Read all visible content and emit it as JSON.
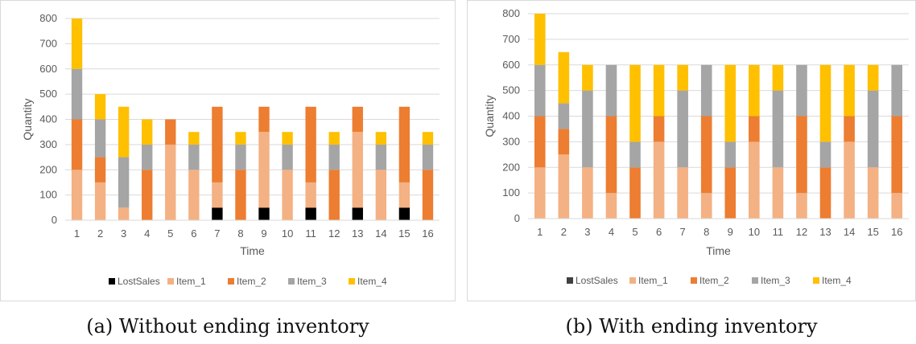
{
  "chart_data": [
    {
      "type": "bar",
      "stacked": true,
      "caption": "(a) Without ending inventory",
      "xlabel": "Time",
      "ylabel": "Quantity",
      "ylim": [
        0,
        800
      ],
      "yticks": [
        0,
        100,
        200,
        300,
        400,
        500,
        600,
        700,
        800
      ],
      "grid": true,
      "legend_position": "bottom",
      "categories": [
        "1",
        "2",
        "3",
        "4",
        "5",
        "6",
        "7",
        "8",
        "9",
        "10",
        "11",
        "12",
        "13",
        "14",
        "15",
        "16"
      ],
      "series": [
        {
          "name": "LostSales",
          "color": "#000000",
          "values": [
            0,
            0,
            0,
            0,
            0,
            0,
            50,
            0,
            50,
            0,
            50,
            0,
            50,
            0,
            50,
            0
          ]
        },
        {
          "name": "Item_1",
          "color": "#f4b183",
          "values": [
            200,
            150,
            50,
            0,
            300,
            200,
            100,
            0,
            300,
            200,
            100,
            0,
            300,
            200,
            100,
            0
          ]
        },
        {
          "name": "Item_2",
          "color": "#ed7d31",
          "values": [
            200,
            100,
            0,
            200,
            100,
            0,
            300,
            200,
            100,
            0,
            300,
            200,
            100,
            0,
            300,
            200
          ]
        },
        {
          "name": "Item_3",
          "color": "#a5a5a5",
          "values": [
            200,
            150,
            200,
            100,
            0,
            100,
            0,
            100,
            0,
            100,
            0,
            100,
            0,
            100,
            0,
            100
          ]
        },
        {
          "name": "Item_4",
          "color": "#ffc000",
          "values": [
            200,
            100,
            200,
            100,
            0,
            50,
            0,
            50,
            0,
            50,
            0,
            50,
            0,
            50,
            0,
            50
          ]
        }
      ]
    },
    {
      "type": "bar",
      "stacked": true,
      "caption": "(b) With ending inventory",
      "xlabel": "Time",
      "ylabel": "Quantity",
      "ylim": [
        0,
        800
      ],
      "yticks": [
        0,
        100,
        200,
        300,
        400,
        500,
        600,
        700,
        800
      ],
      "grid": true,
      "legend_position": "bottom",
      "categories": [
        "1",
        "2",
        "3",
        "4",
        "5",
        "6",
        "7",
        "8",
        "9",
        "10",
        "11",
        "12",
        "13",
        "14",
        "15",
        "16"
      ],
      "series": [
        {
          "name": "LostSales",
          "color": "#404040",
          "values": [
            0,
            0,
            0,
            0,
            0,
            0,
            0,
            0,
            0,
            0,
            0,
            0,
            0,
            0,
            0,
            0
          ]
        },
        {
          "name": "Item_1",
          "color": "#f4b183",
          "values": [
            200,
            250,
            200,
            100,
            0,
            300,
            200,
            100,
            0,
            300,
            200,
            100,
            0,
            300,
            200,
            100
          ]
        },
        {
          "name": "Item_2",
          "color": "#ed7d31",
          "values": [
            200,
            100,
            0,
            300,
            200,
            100,
            0,
            300,
            200,
            100,
            0,
            300,
            200,
            100,
            0,
            300
          ]
        },
        {
          "name": "Item_3",
          "color": "#a5a5a5",
          "values": [
            200,
            100,
            300,
            200,
            100,
            0,
            300,
            200,
            100,
            0,
            300,
            200,
            100,
            0,
            300,
            200
          ]
        },
        {
          "name": "Item_4",
          "color": "#ffc000",
          "values": [
            200,
            200,
            100,
            0,
            300,
            200,
            100,
            0,
            300,
            200,
            100,
            0,
            300,
            200,
            100,
            0
          ]
        }
      ]
    }
  ]
}
